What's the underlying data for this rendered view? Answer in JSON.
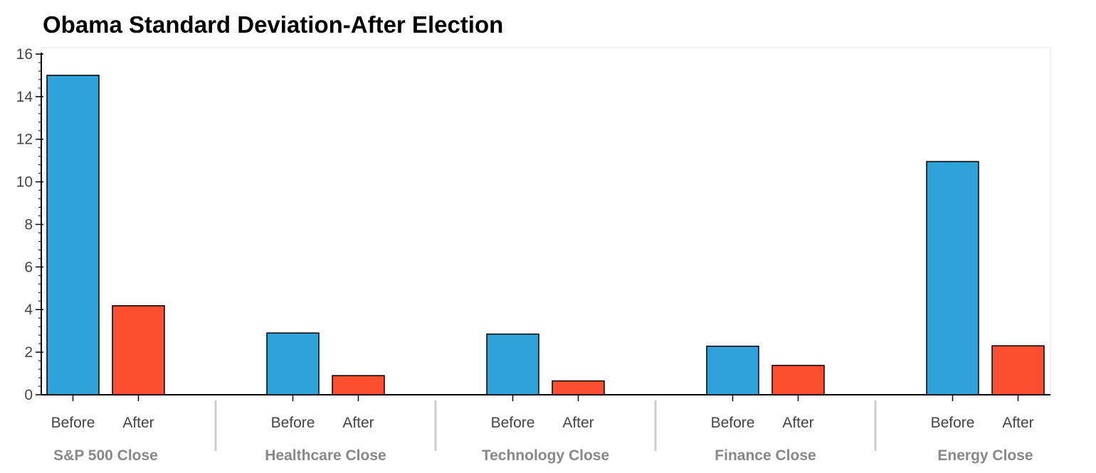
{
  "chart_data": {
    "type": "bar",
    "title": "Obama Standard Deviation-After Election",
    "xlabel": "",
    "ylabel": "",
    "ylim": [
      0,
      16.3
    ],
    "yticks": [
      0,
      2,
      4,
      6,
      8,
      10,
      12,
      14,
      16
    ],
    "grid": false,
    "legend": "none",
    "groups": [
      "S&P 500 Close",
      "Healthcare Close",
      "Technology Close",
      "Finance Close",
      "Energy Close"
    ],
    "subcategories": [
      "Before",
      "After"
    ],
    "series": [
      {
        "subcategory": "Before",
        "color": "#30a2da",
        "values": [
          15.0,
          2.9,
          2.85,
          2.28,
          10.95
        ]
      },
      {
        "subcategory": "After",
        "color": "#fc4f30",
        "values": [
          4.18,
          0.9,
          0.65,
          1.38,
          2.3
        ]
      }
    ]
  },
  "colors": {
    "before": "#30a2da",
    "after": "#fc4f30",
    "axis": "#000000",
    "frame": "#e5e5e5",
    "tick_label": "#444444",
    "group_label": "#888888",
    "separator": "#cccccc"
  }
}
